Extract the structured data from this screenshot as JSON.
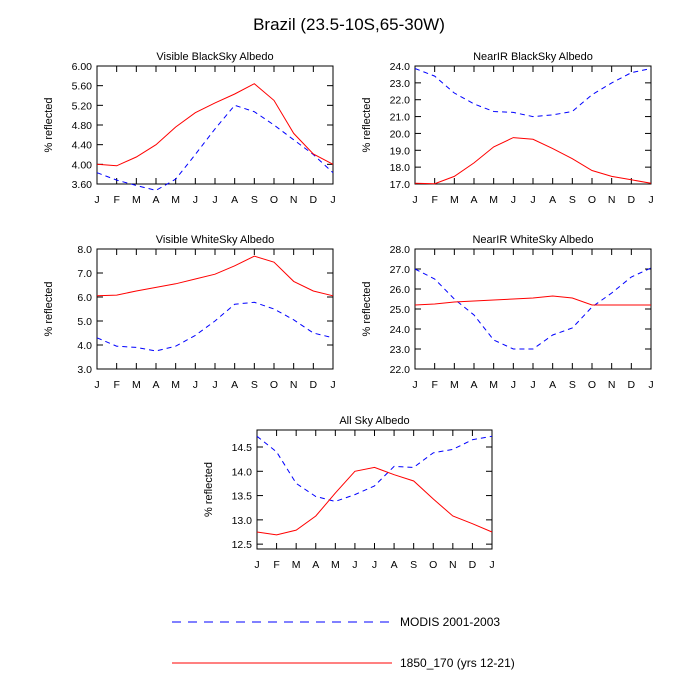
{
  "figure": {
    "title": "Brazil (23.5-10S,65-30W)",
    "months": [
      "J",
      "F",
      "M",
      "A",
      "M",
      "J",
      "J",
      "A",
      "S",
      "O",
      "N",
      "D",
      "J"
    ],
    "ylabel": "% reflected",
    "legend": [
      {
        "name": "MODIS 2001-2003",
        "color": "#0000ff",
        "dash": "dashed"
      },
      {
        "name": "1850_170 (yrs 12-21)",
        "color": "#ff0000",
        "dash": "solid"
      }
    ]
  },
  "chart_data": [
    {
      "type": "line",
      "title": "Visible BlackSky Albedo",
      "ylabel": "% reflected",
      "ylim": [
        3.6,
        6.0
      ],
      "yticks": [
        "3.60",
        "4.00",
        "4.40",
        "4.80",
        "5.20",
        "5.60",
        "6.00"
      ],
      "categories": [
        "J",
        "F",
        "M",
        "A",
        "M",
        "J",
        "J",
        "A",
        "S",
        "O",
        "N",
        "D",
        "J"
      ],
      "series": [
        {
          "name": "MODIS 2001-2003",
          "values": [
            3.83,
            3.68,
            3.57,
            3.47,
            3.7,
            4.2,
            4.72,
            5.2,
            5.07,
            4.8,
            4.5,
            4.2,
            3.83
          ]
        },
        {
          "name": "1850_170 (yrs 12-21)",
          "values": [
            4.0,
            3.97,
            4.15,
            4.4,
            4.76,
            5.05,
            5.25,
            5.43,
            5.64,
            5.3,
            4.63,
            4.21,
            4.0
          ]
        }
      ]
    },
    {
      "type": "line",
      "title": "NearIR BlackSky Albedo",
      "ylabel": "% reflected",
      "ylim": [
        17.0,
        24.0
      ],
      "yticks": [
        "17.0",
        "18.0",
        "19.0",
        "20.0",
        "21.0",
        "22.0",
        "23.0",
        "24.0"
      ],
      "categories": [
        "J",
        "F",
        "M",
        "A",
        "M",
        "J",
        "J",
        "A",
        "S",
        "O",
        "N",
        "D",
        "J"
      ],
      "series": [
        {
          "name": "MODIS 2001-2003",
          "values": [
            23.85,
            23.4,
            22.4,
            21.75,
            21.3,
            21.25,
            21.0,
            21.1,
            21.3,
            22.3,
            23.0,
            23.6,
            23.85
          ]
        },
        {
          "name": "1850_170 (yrs 12-21)",
          "values": [
            17.05,
            17.02,
            17.45,
            18.25,
            19.2,
            19.75,
            19.65,
            19.1,
            18.5,
            17.8,
            17.45,
            17.25,
            17.05
          ]
        }
      ]
    },
    {
      "type": "line",
      "title": "Visible WhiteSky Albedo",
      "ylabel": "% reflected",
      "ylim": [
        3.0,
        8.0
      ],
      "yticks": [
        "3.0",
        "4.0",
        "5.0",
        "6.0",
        "7.0",
        "8.0"
      ],
      "categories": [
        "J",
        "F",
        "M",
        "A",
        "M",
        "J",
        "J",
        "A",
        "S",
        "O",
        "N",
        "D",
        "J"
      ],
      "series": [
        {
          "name": "MODIS 2001-2003",
          "values": [
            4.3,
            3.95,
            3.9,
            3.75,
            3.95,
            4.4,
            5.0,
            5.7,
            5.78,
            5.5,
            5.05,
            4.5,
            4.3
          ]
        },
        {
          "name": "1850_170 (yrs 12-21)",
          "values": [
            6.05,
            6.08,
            6.25,
            6.4,
            6.55,
            6.75,
            6.95,
            7.3,
            7.7,
            7.45,
            6.65,
            6.25,
            6.05
          ]
        }
      ]
    },
    {
      "type": "line",
      "title": "NearIR WhiteSky Albedo",
      "ylabel": "% reflected",
      "ylim": [
        22.0,
        28.0
      ],
      "yticks": [
        "22.0",
        "23.0",
        "24.0",
        "25.0",
        "26.0",
        "27.0",
        "28.0"
      ],
      "categories": [
        "J",
        "F",
        "M",
        "A",
        "M",
        "J",
        "J",
        "A",
        "S",
        "O",
        "N",
        "D",
        "J"
      ],
      "series": [
        {
          "name": "MODIS 2001-2003",
          "values": [
            27.0,
            26.5,
            25.5,
            24.7,
            23.45,
            23.0,
            23.0,
            23.7,
            24.05,
            25.1,
            25.8,
            26.6,
            27.05
          ]
        },
        {
          "name": "1850_170 (yrs 12-21)",
          "values": [
            25.2,
            25.25,
            25.35,
            25.4,
            25.45,
            25.5,
            25.55,
            25.65,
            25.55,
            25.2,
            25.2,
            25.2,
            25.2
          ]
        }
      ]
    },
    {
      "type": "line",
      "title": "All Sky Albedo",
      "ylabel": "% reflected",
      "ylim": [
        12.4,
        14.85
      ],
      "yticks": [
        "12.5",
        "13.0",
        "13.5",
        "14.0",
        "14.5"
      ],
      "categories": [
        "J",
        "F",
        "M",
        "A",
        "M",
        "J",
        "J",
        "A",
        "S",
        "O",
        "N",
        "D",
        "J"
      ],
      "series": [
        {
          "name": "MODIS 2001-2003",
          "values": [
            14.72,
            14.4,
            13.75,
            13.48,
            13.38,
            13.52,
            13.7,
            14.1,
            14.08,
            14.38,
            14.45,
            14.65,
            14.72
          ]
        },
        {
          "name": "1850_170 (yrs 12-21)",
          "values": [
            12.75,
            12.69,
            12.79,
            13.08,
            13.55,
            14.0,
            14.08,
            13.93,
            13.8,
            13.43,
            13.08,
            12.92,
            12.75
          ]
        }
      ]
    }
  ]
}
